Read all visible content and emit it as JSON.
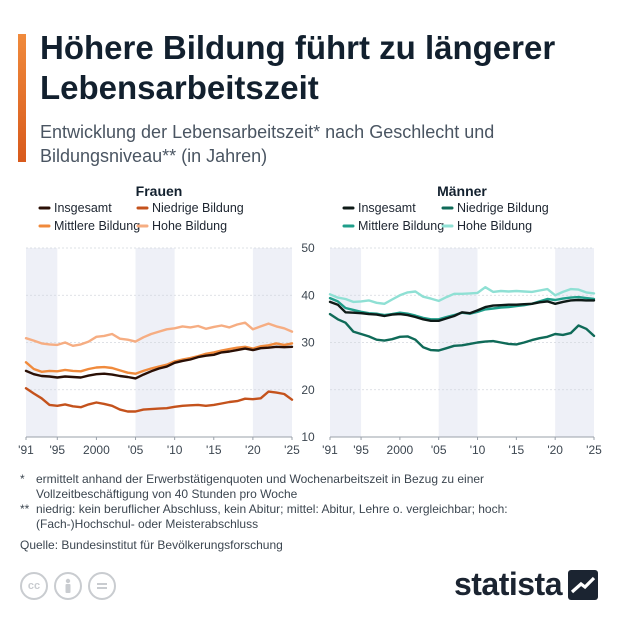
{
  "header": {
    "title": "Höhere Bildung führt zu längerer Lebensarbeitszeit",
    "subtitle": "Entwicklung der Lebensarbeitszeit* nach Geschlecht und Bildungsniveau** (in Jahren)"
  },
  "chart_data": [
    {
      "type": "line",
      "title": "Frauen",
      "x": [
        1991,
        1992,
        1993,
        1994,
        1995,
        1996,
        1997,
        1998,
        1999,
        2000,
        2001,
        2002,
        2003,
        2004,
        2005,
        2006,
        2007,
        2008,
        2009,
        2010,
        2011,
        2012,
        2013,
        2014,
        2015,
        2016,
        2017,
        2018,
        2019,
        2020,
        2021,
        2022,
        2023,
        2024,
        2025
      ],
      "xticks": [
        "'91",
        "'95",
        "2000",
        "'05",
        "'10",
        "'15",
        "'20",
        "'25"
      ],
      "xtick_values": [
        1991,
        1995,
        2000,
        2005,
        2010,
        2015,
        2020,
        2025
      ],
      "ylim": [
        10,
        50
      ],
      "yticks": [
        10,
        20,
        30,
        40,
        50
      ],
      "show_y_labels": false,
      "shaded_bands": [
        [
          1991,
          1995
        ],
        [
          2005,
          2010
        ],
        [
          2020,
          2025
        ]
      ],
      "legend": [
        "Insgesamt",
        "Niedrige Bildung",
        "Mittlere Bildung",
        "Hohe Bildung"
      ],
      "series": [
        {
          "name": "Insgesamt",
          "color": "#2a0f05",
          "values": [
            24.0,
            23.3,
            22.9,
            22.8,
            22.6,
            22.8,
            22.7,
            22.6,
            23.0,
            23.3,
            23.4,
            23.2,
            22.9,
            22.7,
            22.4,
            23.2,
            23.9,
            24.5,
            24.9,
            25.7,
            26.1,
            26.4,
            26.9,
            27.2,
            27.4,
            27.9,
            28.1,
            28.4,
            28.7,
            28.4,
            28.8,
            28.9,
            29.1,
            29.0,
            29.1
          ]
        },
        {
          "name": "Niedrige Bildung",
          "color": "#c4521c",
          "values": [
            20.3,
            19.2,
            18.2,
            16.8,
            16.6,
            16.9,
            16.5,
            16.3,
            16.9,
            17.3,
            17.0,
            16.6,
            15.8,
            15.4,
            15.4,
            15.8,
            15.9,
            16.0,
            16.1,
            16.4,
            16.6,
            16.7,
            16.8,
            16.6,
            16.8,
            17.1,
            17.4,
            17.6,
            18.1,
            18.0,
            18.2,
            19.6,
            19.4,
            19.1,
            17.9
          ]
        },
        {
          "name": "Mittlere Bildung",
          "color": "#f08a3c",
          "values": [
            25.8,
            24.4,
            23.8,
            24.0,
            23.9,
            24.2,
            24.0,
            23.9,
            24.4,
            24.7,
            24.8,
            24.6,
            24.1,
            23.6,
            23.4,
            24.0,
            24.5,
            24.9,
            25.3,
            26.0,
            26.4,
            26.7,
            27.1,
            27.6,
            27.9,
            28.3,
            28.6,
            28.9,
            29.1,
            28.7,
            29.2,
            29.4,
            29.8,
            29.5,
            29.8
          ]
        },
        {
          "name": "Hohe Bildung",
          "color": "#f6ad82",
          "values": [
            30.9,
            30.4,
            29.8,
            29.6,
            29.5,
            30.0,
            29.3,
            29.6,
            30.2,
            31.2,
            31.4,
            31.8,
            30.8,
            30.6,
            30.2,
            31.1,
            31.8,
            32.3,
            32.8,
            33.0,
            33.4,
            33.2,
            33.5,
            32.9,
            33.3,
            33.6,
            33.2,
            33.8,
            34.2,
            32.8,
            33.4,
            34.0,
            33.4,
            33.0,
            32.3
          ]
        }
      ]
    },
    {
      "type": "line",
      "title": "Männer",
      "x": [
        1991,
        1992,
        1993,
        1994,
        1995,
        1996,
        1997,
        1998,
        1999,
        2000,
        2001,
        2002,
        2003,
        2004,
        2005,
        2006,
        2007,
        2008,
        2009,
        2010,
        2011,
        2012,
        2013,
        2014,
        2015,
        2016,
        2017,
        2018,
        2019,
        2020,
        2021,
        2022,
        2023,
        2024,
        2025
      ],
      "xticks": [
        "'91",
        "'95",
        "2000",
        "'05",
        "'10",
        "'15",
        "'20",
        "'25"
      ],
      "xtick_values": [
        1991,
        1995,
        2000,
        2005,
        2010,
        2015,
        2020,
        2025
      ],
      "ylim": [
        10,
        50
      ],
      "yticks": [
        10,
        20,
        30,
        40,
        50
      ],
      "show_y_labels": true,
      "shaded_bands": [
        [
          1991,
          1995
        ],
        [
          2005,
          2010
        ],
        [
          2020,
          2025
        ]
      ],
      "legend": [
        "Insgesamt",
        "Niedrige Bildung",
        "Mittlere Bildung",
        "Hohe Bildung"
      ],
      "series": [
        {
          "name": "Insgesamt",
          "color": "#0e1a17",
          "values": [
            38.6,
            38.0,
            36.4,
            36.3,
            36.2,
            36.0,
            35.9,
            35.6,
            35.9,
            36.0,
            35.8,
            35.4,
            34.9,
            34.6,
            34.6,
            35.1,
            35.6,
            36.4,
            36.2,
            36.8,
            37.5,
            37.8,
            37.9,
            38.0,
            38.0,
            38.1,
            38.2,
            38.5,
            38.7,
            38.2,
            38.6,
            38.9,
            39.0,
            38.9,
            38.9
          ]
        },
        {
          "name": "Niedrige Bildung",
          "color": "#0f6a58",
          "values": [
            36.0,
            34.9,
            34.2,
            32.3,
            31.8,
            31.3,
            30.6,
            30.4,
            30.7,
            31.2,
            31.3,
            30.6,
            29.0,
            28.4,
            28.3,
            28.8,
            29.3,
            29.4,
            29.7,
            30.0,
            30.2,
            30.3,
            30.0,
            29.7,
            29.6,
            30.0,
            30.5,
            30.9,
            31.2,
            31.8,
            31.6,
            32.0,
            33.6,
            32.9,
            31.4
          ]
        },
        {
          "name": "Mittlere Bildung",
          "color": "#1f9e8a",
          "values": [
            39.4,
            38.7,
            37.3,
            36.9,
            36.5,
            36.2,
            36.1,
            35.8,
            36.0,
            36.3,
            36.1,
            35.7,
            35.2,
            34.9,
            34.9,
            35.4,
            35.8,
            36.3,
            36.1,
            36.5,
            37.0,
            37.2,
            37.4,
            37.5,
            37.7,
            37.9,
            38.2,
            38.7,
            39.2,
            39.0,
            39.3,
            39.5,
            39.6,
            39.4,
            39.2
          ]
        },
        {
          "name": "Hohe Bildung",
          "color": "#8fe0d4",
          "values": [
            40.2,
            39.5,
            39.2,
            38.6,
            38.7,
            38.9,
            38.4,
            38.2,
            39.1,
            40.0,
            40.6,
            40.8,
            39.7,
            39.3,
            38.8,
            39.6,
            40.3,
            40.3,
            40.4,
            40.5,
            41.7,
            40.7,
            40.9,
            40.8,
            40.9,
            40.8,
            40.7,
            41.0,
            41.3,
            40.0,
            40.7,
            41.3,
            41.2,
            40.6,
            40.4
          ]
        }
      ]
    }
  ],
  "footnotes": [
    {
      "mark": "*",
      "text": "ermittelt anhand der Erwerbstätigenquoten und Wochenarbeitszeit in Bezug zu einer Vollzeitbeschäftigung von 40 Stunden pro Woche"
    },
    {
      "mark": "**",
      "text": "niedrig: kein beruflicher Abschluss, kein Abitur; mittel: Abitur, Lehre o. vergleichbar; hoch: (Fach-)Hochschul- oder Meisterabschluss"
    }
  ],
  "source": "Quelle: Bundesinstitut für Bevölkerungsforschung",
  "license_icons": [
    "cc-icon",
    "person-icon",
    "equals-icon"
  ],
  "brand": {
    "name": "statista"
  }
}
